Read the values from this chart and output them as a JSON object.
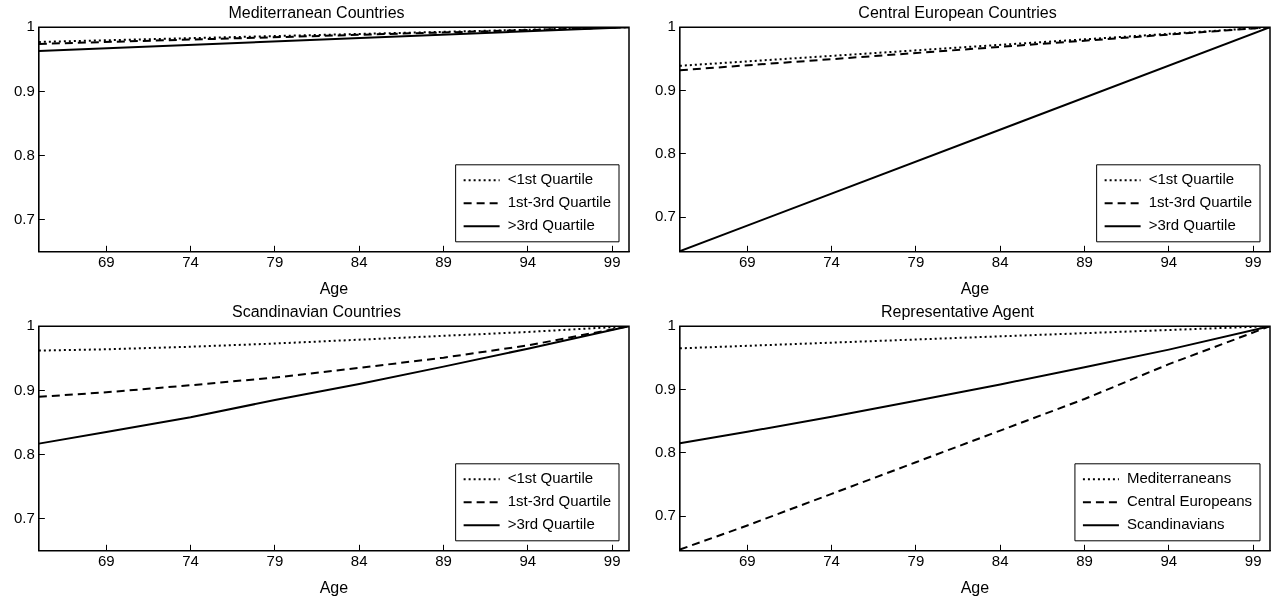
{
  "chart_data": [
    {
      "type": "line",
      "title": "Mediterranean Countries",
      "xlabel": "Age",
      "xlim": [
        65,
        100
      ],
      "xticks": [
        69,
        74,
        79,
        84,
        89,
        94,
        99
      ],
      "ylim": [
        0.65,
        1
      ],
      "yticks": [
        0.7,
        0.8,
        0.9,
        1
      ],
      "grid": false,
      "legend": "bottom right",
      "marker": "none",
      "series": [
        {
          "name": "<1st Quartile",
          "color": "#000000",
          "line_style": "dotted",
          "x": [
            65,
            100
          ],
          "values": [
            0.977,
            1
          ]
        },
        {
          "name": "1st-3rd Quartile",
          "color": "#000000",
          "line_style": "dashed",
          "x": [
            65,
            100
          ],
          "values": [
            0.974,
            1
          ]
        },
        {
          "name": ">3rd Quartile",
          "color": "#000000",
          "line_style": "solid",
          "x": [
            65,
            100
          ],
          "values": [
            0.963,
            1
          ]
        }
      ]
    },
    {
      "type": "line",
      "title": "Central European Countries",
      "xlabel": "Age",
      "xlim": [
        65,
        100
      ],
      "xticks": [
        69,
        74,
        79,
        84,
        89,
        94,
        99
      ],
      "ylim": [
        0.645,
        1
      ],
      "yticks": [
        0.7,
        0.8,
        0.9,
        1
      ],
      "grid": false,
      "legend": "bottom right",
      "marker": "none",
      "series": [
        {
          "name": "<1st Quartile",
          "color": "#000000",
          "line_style": "dotted",
          "x": [
            65,
            100
          ],
          "values": [
            0.939,
            1
          ]
        },
        {
          "name": "1st-3rd Quartile",
          "color": "#000000",
          "line_style": "dashed",
          "x": [
            65,
            100
          ],
          "values": [
            0.932,
            1
          ]
        },
        {
          "name": ">3rd Quartile",
          "color": "#000000",
          "line_style": "solid",
          "x": [
            65,
            100
          ],
          "values": [
            0.646,
            1
          ]
        }
      ]
    },
    {
      "type": "line",
      "title": "Scandinavian Countries",
      "xlabel": "Age",
      "xlim": [
        65,
        100
      ],
      "xticks": [
        69,
        74,
        79,
        84,
        89,
        94,
        99
      ],
      "ylim": [
        0.65,
        1
      ],
      "yticks": [
        0.7,
        0.8,
        0.9,
        1
      ],
      "grid": false,
      "legend": "bottom right",
      "marker": "none",
      "series": [
        {
          "name": "<1st Quartile",
          "color": "#000000",
          "line_style": "dotted",
          "x": [
            65,
            69,
            74,
            79,
            84,
            89,
            94,
            100
          ],
          "values": [
            0.962,
            0.964,
            0.968,
            0.973,
            0.979,
            0.985,
            0.991,
            1
          ]
        },
        {
          "name": "1st-3rd Quartile",
          "color": "#000000",
          "line_style": "dashed",
          "x": [
            65,
            69,
            74,
            79,
            84,
            89,
            94,
            100
          ],
          "values": [
            0.89,
            0.897,
            0.908,
            0.92,
            0.935,
            0.951,
            0.97,
            1
          ]
        },
        {
          "name": ">3rd Quartile",
          "color": "#000000",
          "line_style": "solid",
          "x": [
            65,
            69,
            74,
            79,
            84,
            89,
            94,
            100
          ],
          "values": [
            0.817,
            0.835,
            0.858,
            0.885,
            0.91,
            0.937,
            0.965,
            1
          ]
        }
      ]
    },
    {
      "type": "line",
      "title": "Representative Agent",
      "xlabel": "Age",
      "xlim": [
        65,
        100
      ],
      "xticks": [
        69,
        74,
        79,
        84,
        89,
        94,
        99
      ],
      "ylim": [
        0.645,
        1
      ],
      "yticks": [
        0.7,
        0.8,
        0.9,
        1
      ],
      "grid": false,
      "legend": "bottom right",
      "marker": "none",
      "series": [
        {
          "name": "Mediterraneans",
          "color": "#000000",
          "line_style": "dotted",
          "x": [
            65,
            100
          ],
          "values": [
            0.965,
            1
          ]
        },
        {
          "name": "Central Europeans",
          "color": "#000000",
          "line_style": "dashed",
          "x": [
            65,
            69,
            74,
            79,
            84,
            89,
            94,
            100
          ],
          "values": [
            0.647,
            0.685,
            0.735,
            0.785,
            0.835,
            0.885,
            0.94,
            1
          ]
        },
        {
          "name": "Scandinavians",
          "color": "#000000",
          "line_style": "solid",
          "x": [
            65,
            69,
            74,
            79,
            84,
            89,
            94,
            100
          ],
          "values": [
            0.815,
            0.833,
            0.857,
            0.882,
            0.908,
            0.935,
            0.963,
            1
          ]
        }
      ]
    }
  ]
}
